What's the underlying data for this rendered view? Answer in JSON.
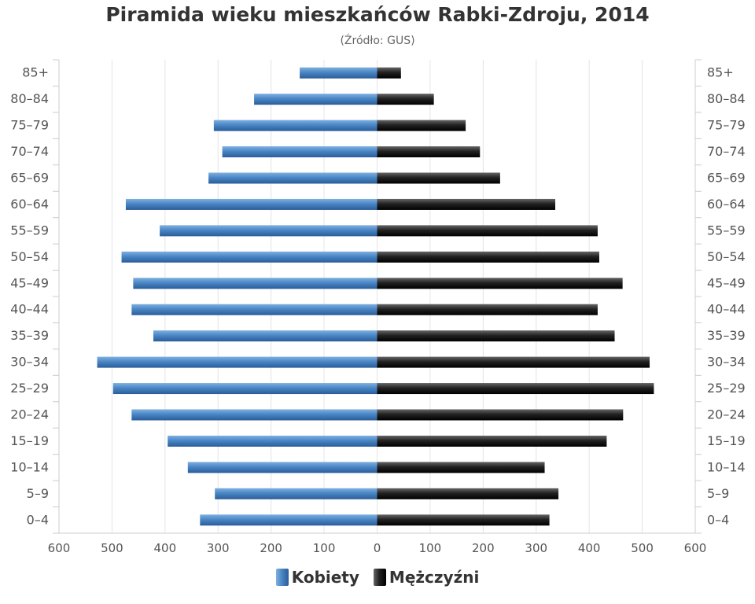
{
  "chart_data": {
    "type": "bar",
    "title": "Piramida wieku mieszkańców Rabki-Zdroju, 2014",
    "subtitle": "(Źródło: GUS)",
    "categories": [
      "85+",
      "80–84",
      "75–79",
      "70–74",
      "65–69",
      "60–64",
      "55–59",
      "50–54",
      "45–49",
      "40–44",
      "35–39",
      "30–34",
      "25–29",
      "20–24",
      "15–19",
      "10–14",
      "5–9",
      "0–4"
    ],
    "series": [
      {
        "name": "Kobiety",
        "values": [
          146,
          232,
          308,
          292,
          318,
          474,
          410,
          482,
          460,
          463,
          422,
          528,
          498,
          463,
          395,
          357,
          306,
          334
        ],
        "color": "#4a86c5"
      },
      {
        "name": "Mężczyźni",
        "values": [
          45,
          107,
          167,
          194,
          232,
          336,
          416,
          419,
          463,
          416,
          448,
          514,
          522,
          464,
          433,
          316,
          342,
          325
        ],
        "color": "#222222"
      }
    ],
    "xlim": [
      -600,
      600
    ],
    "xticks": [
      "600",
      "500",
      "400",
      "300",
      "200",
      "100",
      "0",
      "100",
      "200",
      "300",
      "400",
      "500",
      "600"
    ],
    "grid": true,
    "legend": "bottom"
  }
}
